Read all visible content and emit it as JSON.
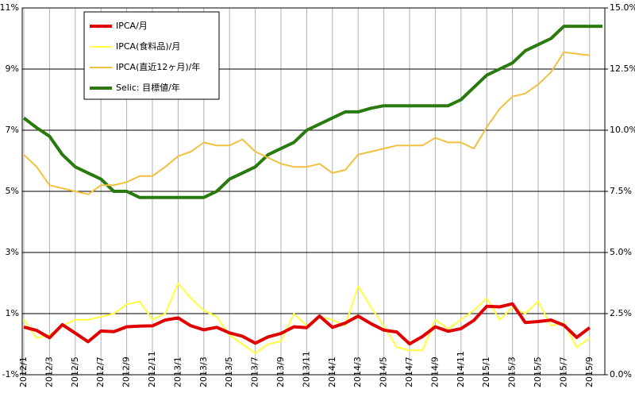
{
  "chart_data": {
    "type": "line",
    "categories": [
      "2012/1",
      null,
      "2012/3",
      null,
      "2012/5",
      null,
      "2012/7",
      null,
      "2012/9",
      null,
      "2012/11",
      null,
      "2013/1",
      null,
      "2013/3",
      null,
      "2013/5",
      null,
      "2013/7",
      null,
      "2013/9",
      null,
      "2013/11",
      null,
      "2014/1",
      null,
      "2014/3",
      null,
      "2014/5",
      null,
      "2014/7",
      null,
      "2014/9",
      null,
      "2014/11",
      null,
      "2015/1",
      null,
      "2015/3",
      null,
      "2015/5",
      null,
      "2015/7",
      null,
      "2015/9",
      null
    ],
    "ylim": [
      -1,
      11
    ],
    "yticks": [
      {
        "value": -1,
        "label": "-1%"
      },
      {
        "value": 1,
        "label": "1%"
      },
      {
        "value": 3,
        "label": "3%"
      },
      {
        "value": 5,
        "label": "5%"
      },
      {
        "value": 7,
        "label": "7%"
      },
      {
        "value": 9,
        "label": "9%"
      },
      {
        "value": 11,
        "label": "11%"
      }
    ],
    "y2lim": [
      0,
      15
    ],
    "y2ticks": [
      {
        "value": 0,
        "label": "0.0%"
      },
      {
        "value": 2.5,
        "label": "2.5%"
      },
      {
        "value": 5,
        "label": "5.0%"
      },
      {
        "value": 7.5,
        "label": "7.5%"
      },
      {
        "value": 10,
        "label": "10.0%"
      },
      {
        "value": 12.5,
        "label": "12.5%"
      },
      {
        "value": 15,
        "label": "15.0%"
      }
    ],
    "grid": true,
    "series": [
      {
        "name": "IPCA/月",
        "color": "#e00000",
        "width": 4,
        "values": [
          0.56,
          0.45,
          0.21,
          0.64,
          0.36,
          0.08,
          0.43,
          0.41,
          0.57,
          0.59,
          0.6,
          0.79,
          0.86,
          0.6,
          0.47,
          0.55,
          0.37,
          0.26,
          0.03,
          0.24,
          0.35,
          0.57,
          0.54,
          0.92,
          0.55,
          0.69,
          0.92,
          0.67,
          0.46,
          0.4,
          0.01,
          0.25,
          0.57,
          0.42,
          0.51,
          0.78,
          1.24,
          1.22,
          1.32,
          0.71,
          0.74,
          0.79,
          0.62,
          0.22,
          0.54,
          null
        ]
      },
      {
        "name": "IPCA(食料品)/月",
        "color": "#ffff40",
        "width": 2,
        "values": [
          0.8,
          0.2,
          0.3,
          0.6,
          0.8,
          0.8,
          0.9,
          1.0,
          1.3,
          1.4,
          0.8,
          1.0,
          1.99,
          1.5,
          1.1,
          0.9,
          0.3,
          0.0,
          -0.3,
          0.0,
          0.1,
          1.0,
          0.6,
          0.9,
          0.8,
          0.6,
          1.9,
          1.2,
          0.6,
          -0.1,
          -0.2,
          -0.2,
          0.8,
          0.5,
          0.8,
          1.1,
          1.5,
          0.8,
          1.2,
          1.0,
          1.4,
          0.6,
          0.7,
          -0.1,
          0.2,
          null
        ]
      },
      {
        "name": "IPCA(直近12ヶ月)/年",
        "color": "#f0c040",
        "width": 2,
        "values": [
          6.2,
          5.8,
          5.2,
          5.1,
          5.0,
          4.9,
          5.2,
          5.2,
          5.3,
          5.5,
          5.5,
          5.8,
          6.15,
          6.3,
          6.6,
          6.5,
          6.5,
          6.7,
          6.3,
          6.1,
          5.9,
          5.8,
          5.8,
          5.9,
          5.6,
          5.7,
          6.2,
          6.3,
          6.4,
          6.5,
          6.5,
          6.5,
          6.75,
          6.6,
          6.6,
          6.4,
          7.1,
          7.7,
          8.1,
          8.2,
          8.5,
          8.9,
          9.55,
          9.5,
          9.45,
          null
        ]
      },
      {
        "name": "Selic: 目標値/年",
        "color": "#2a7a10",
        "width": 4,
        "axis": "y2",
        "values": [
          10.5,
          10.1,
          9.75,
          9.0,
          8.5,
          8.25,
          8.0,
          7.5,
          7.5,
          7.25,
          7.25,
          7.25,
          7.25,
          7.25,
          7.25,
          7.5,
          8.0,
          8.25,
          8.5,
          9.0,
          9.25,
          9.5,
          10.0,
          10.25,
          10.5,
          10.75,
          10.75,
          10.9,
          11.0,
          11.0,
          11.0,
          11.0,
          11.0,
          11.0,
          11.25,
          11.75,
          12.25,
          12.5,
          12.75,
          13.25,
          13.5,
          13.75,
          14.25,
          14.25,
          14.25,
          14.25
        ]
      }
    ]
  }
}
